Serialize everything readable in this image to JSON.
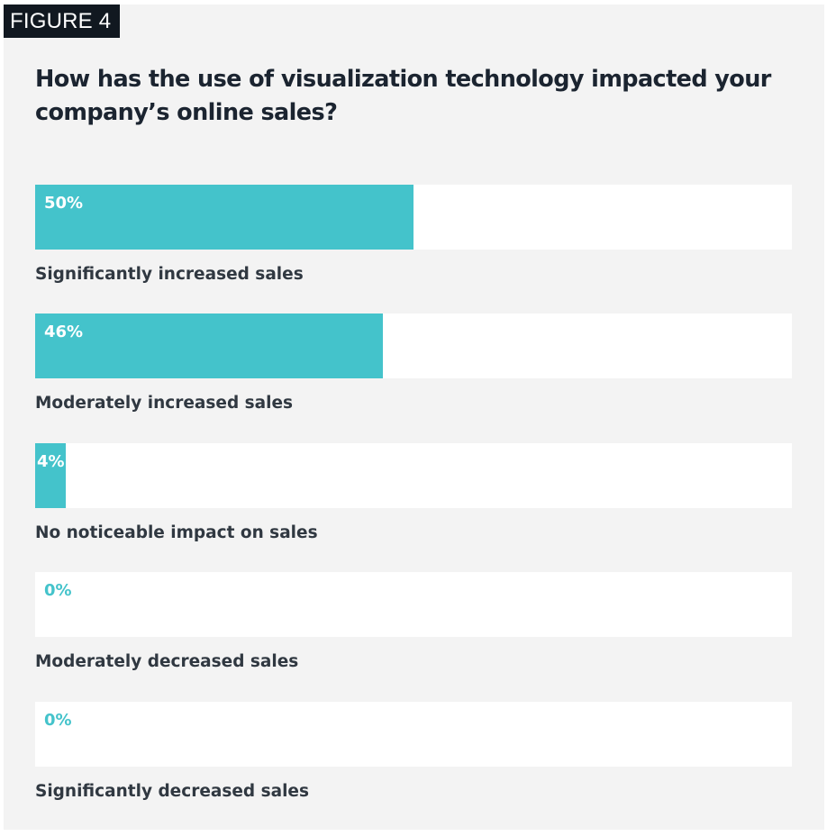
{
  "figure_tag": "FIGURE 4",
  "colors": {
    "bar": "#44c3cb",
    "track": "#ffffff",
    "panel": "#f3f3f3",
    "value_on_bar": "#ffffff",
    "value_off_bar": "#44c3cb",
    "label": "#303841"
  },
  "chart_data": {
    "type": "bar",
    "orientation": "horizontal",
    "title": "How has the use of visualization technology impacted your company’s online sales?",
    "xlim": [
      0,
      100
    ],
    "unit": "%",
    "categories": [
      "Significantly increased sales",
      "Moderately increased sales",
      "No noticeable impact on sales",
      "Moderately decreased sales",
      "Significantly decreased sales"
    ],
    "values": [
      50,
      46,
      4,
      0,
      0
    ],
    "value_labels": [
      "50%",
      "46%",
      "4%",
      "0%",
      "0%"
    ]
  }
}
